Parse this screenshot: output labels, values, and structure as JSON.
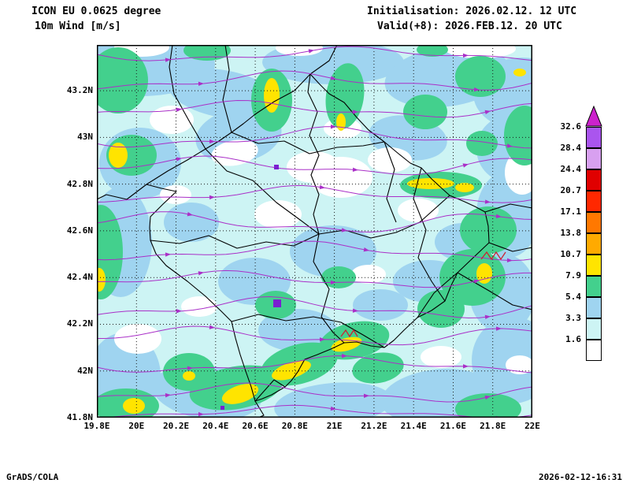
{
  "header": {
    "model": "ICON EU 0.0625 degree",
    "field": "10m Wind [m/s]",
    "init": "Initialisation: 2026.02.12. 12 UTC",
    "valid": "Valid(+8): 2026.FEB.12. 20 UTC"
  },
  "footer": {
    "credit": "GrADS/COLA",
    "timestamp": "2026-02-12-16:31"
  },
  "map": {
    "x_ticks": [
      "19.8E",
      "20E",
      "20.2E",
      "20.4E",
      "20.6E",
      "20.8E",
      "21E",
      "21.2E",
      "21.4E",
      "21.6E",
      "21.8E",
      "22E"
    ],
    "y_ticks": [
      "41.8N",
      "42N",
      "42.2N",
      "42.4N",
      "42.6N",
      "42.8N",
      "43N",
      "43.2N"
    ],
    "streamline_color": "#aa30c8",
    "marker_color": "#7a1fd0",
    "zigzag_color": "#cc2233"
  },
  "legend": {
    "levels": [
      "1.6",
      "3.3",
      "5.4",
      "7.9",
      "10.7",
      "13.8",
      "17.1",
      "20.7",
      "24.4",
      "28.4",
      "32.6"
    ],
    "colors": [
      "#ffffff",
      "#cdf4f4",
      "#9fd4f0",
      "#43d08d",
      "#ffe400",
      "#ffaa00",
      "#ff7800",
      "#ff2800",
      "#e00000",
      "#d8a0f0",
      "#aa55ee"
    ],
    "arrow_color": "#cc22cc"
  },
  "chart_data": {
    "type": "heatmap",
    "title": "ICON EU 0.0625 degree 10m Wind [m/s]",
    "x_range": [
      "19.8E",
      "22E"
    ],
    "y_range": [
      "41.8N",
      "43.2N"
    ],
    "contour_levels_m_s": [
      1.6,
      3.3,
      5.4,
      7.9,
      10.7,
      13.8,
      17.1,
      20.7,
      24.4,
      28.4,
      32.6
    ],
    "field_range_on_map_m_s": [
      0,
      13.8
    ],
    "legend_position": "right"
  }
}
